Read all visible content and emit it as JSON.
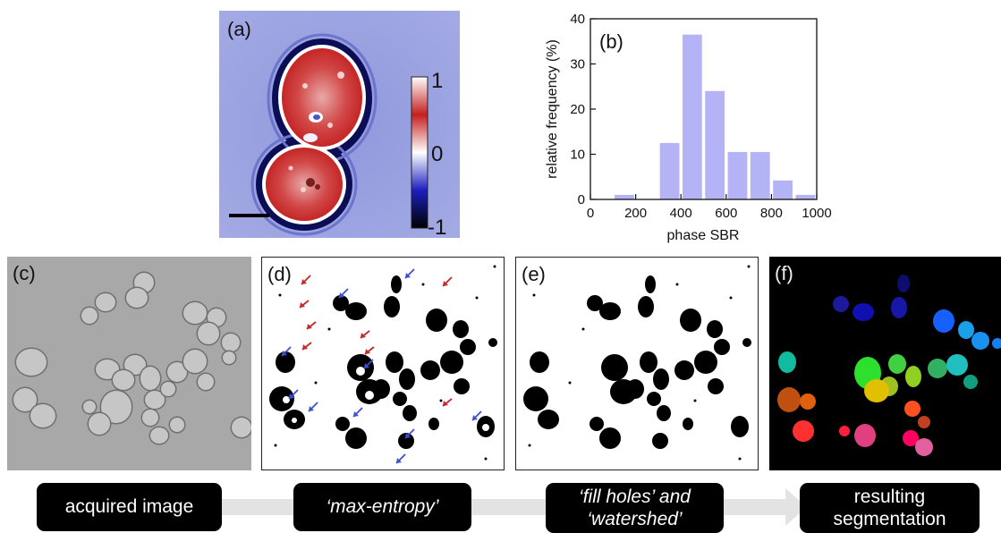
{
  "panels": {
    "a": {
      "label": "(a)",
      "colorbar_ticks": [
        "1",
        "0",
        "-1"
      ]
    },
    "b": {
      "label": "(b)"
    },
    "c": {
      "label": "(c)"
    },
    "d": {
      "label": "(d)"
    },
    "e": {
      "label": "(e)"
    },
    "f": {
      "label": "(f)"
    }
  },
  "pipeline": [
    {
      "lines": [
        "acquired image"
      ]
    },
    {
      "lines": [
        "‘max-entropy’"
      ]
    },
    {
      "lines": [
        "‘fill holes’ and",
        "‘watershed’"
      ]
    },
    {
      "lines": [
        "resulting",
        "segmentation"
      ]
    }
  ],
  "chart_data": {
    "type": "bar",
    "xlabel": "phase SBR",
    "ylabel": "relative frequency (%)",
    "xlim": [
      0,
      1000
    ],
    "ylim": [
      0,
      40
    ],
    "xticks": [
      0,
      200,
      400,
      600,
      800,
      1000
    ],
    "yticks": [
      0,
      10,
      20,
      30,
      40
    ],
    "bin_width": 100,
    "bin_centers": [
      150,
      350,
      450,
      550,
      650,
      750,
      850,
      950
    ],
    "values": [
      1,
      12.5,
      36.5,
      24,
      10.5,
      10.5,
      4.2,
      1
    ],
    "bar_color": "#b3b3f5"
  }
}
